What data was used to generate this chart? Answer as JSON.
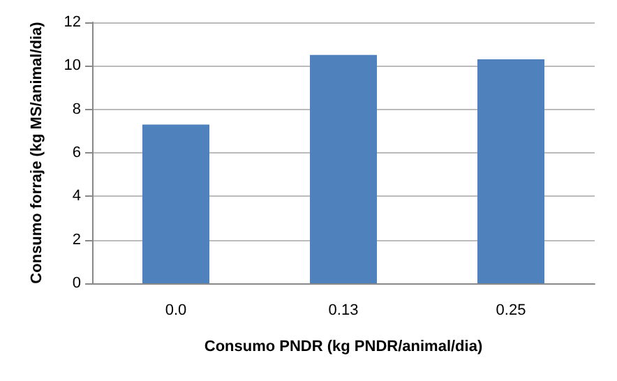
{
  "chart_data": {
    "type": "bar",
    "xlabel": "Consumo PNDR (kg PNDR/animal/dia)",
    "ylabel": "Consumo forraje (kg MS/animal/dia)",
    "categories": [
      "0.0",
      "0.13",
      "0.25"
    ],
    "values": [
      7.3,
      10.5,
      10.3
    ],
    "color": "#4f81bd",
    "ylim": [
      0,
      12
    ],
    "yticks": [
      0,
      2,
      4,
      6,
      8,
      10,
      12
    ],
    "grid": "y"
  }
}
